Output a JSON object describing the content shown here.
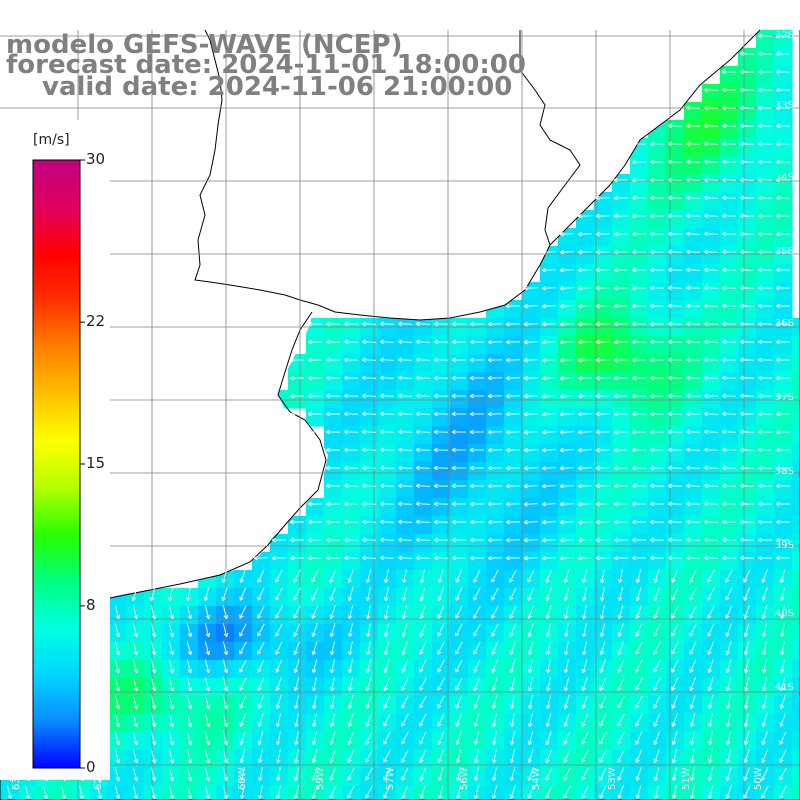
{
  "title": {
    "line1": "modelo GEFS-WAVE (NCEP)",
    "line2": "forecast date: 2024-11-01 18:00:00",
    "line3": "valid date: 2024-11-06 21:00:00"
  },
  "colorbar": {
    "unit": "[m/s]",
    "ticks": [
      {
        "value": 30,
        "label": "30"
      },
      {
        "value": 22,
        "label": "22"
      },
      {
        "value": 15,
        "label": "15"
      },
      {
        "value": 8,
        "label": "8"
      },
      {
        "value": 0,
        "label": "0"
      }
    ],
    "min": 0,
    "max": 30,
    "colors": [
      "#0000ff",
      "#0a8cff",
      "#00d7ff",
      "#00ffe0",
      "#00ff80",
      "#2aff00",
      "#b4ff00",
      "#ffff00",
      "#ffc000",
      "#ff8000",
      "#ff3000",
      "#ff0000",
      "#e00060",
      "#c00080"
    ]
  },
  "map": {
    "lon_range": [
      -66,
      -43
    ],
    "lat_range": [
      -42,
      -31.5
    ],
    "lat_labels": [
      "32S",
      "33S",
      "34S",
      "35S",
      "36S",
      "37S",
      "38S",
      "39S",
      "40S",
      "41S"
    ],
    "lon_labels": [
      "63W",
      "62W",
      "60W",
      "59W",
      "57W",
      "56W",
      "54W",
      "53W",
      "51W",
      "50W"
    ],
    "land_color": "#ffffff",
    "coast_color": "#000000",
    "grid_color": "#808080",
    "arrow_color": "#ffffff",
    "icon": "wind-arrow-icon"
  }
}
